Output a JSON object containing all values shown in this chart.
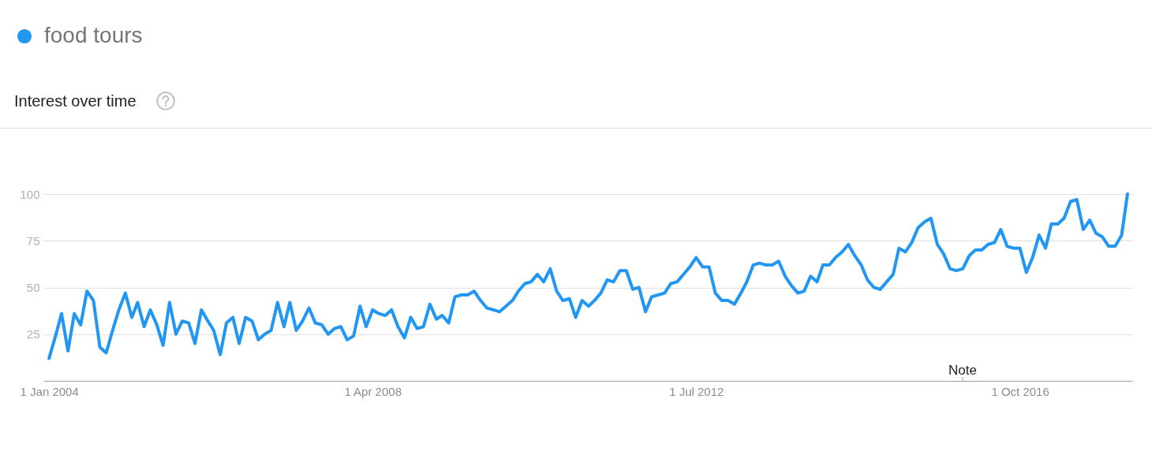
{
  "chart_data": {
    "type": "line",
    "title": "Interest over time",
    "x": [
      "2004-01",
      "2004-02",
      "2004-03",
      "2004-04",
      "2004-05",
      "2004-06",
      "2004-07",
      "2004-08",
      "2004-09",
      "2004-10",
      "2004-11",
      "2004-12",
      "2005-01",
      "2005-02",
      "2005-03",
      "2005-04",
      "2005-05",
      "2005-06",
      "2005-07",
      "2005-08",
      "2005-09",
      "2005-10",
      "2005-11",
      "2005-12",
      "2006-01",
      "2006-02",
      "2006-03",
      "2006-04",
      "2006-05",
      "2006-06",
      "2006-07",
      "2006-08",
      "2006-09",
      "2006-10",
      "2006-11",
      "2006-12",
      "2007-01",
      "2007-02",
      "2007-03",
      "2007-04",
      "2007-05",
      "2007-06",
      "2007-07",
      "2007-08",
      "2007-09",
      "2007-10",
      "2007-11",
      "2007-12",
      "2008-01",
      "2008-02",
      "2008-03",
      "2008-04",
      "2008-05",
      "2008-06",
      "2008-07",
      "2008-08",
      "2008-09",
      "2008-10",
      "2008-11",
      "2008-12",
      "2009-01",
      "2009-02",
      "2009-03",
      "2009-04",
      "2009-05",
      "2009-06",
      "2009-07",
      "2009-08",
      "2009-09",
      "2009-10",
      "2009-11",
      "2009-12",
      "2010-01",
      "2010-02",
      "2010-03",
      "2010-04",
      "2010-05",
      "2010-06",
      "2010-07",
      "2010-08",
      "2010-09",
      "2010-10",
      "2010-11",
      "2010-12",
      "2011-01",
      "2011-02",
      "2011-03",
      "2011-04",
      "2011-05",
      "2011-06",
      "2011-07",
      "2011-08",
      "2011-09",
      "2011-10",
      "2011-11",
      "2011-12",
      "2012-01",
      "2012-02",
      "2012-03",
      "2012-04",
      "2012-05",
      "2012-06",
      "2012-07",
      "2012-08",
      "2012-09",
      "2012-10",
      "2012-11",
      "2012-12",
      "2013-01",
      "2013-02",
      "2013-03",
      "2013-04",
      "2013-05",
      "2013-06",
      "2013-07",
      "2013-08",
      "2013-09",
      "2013-10",
      "2013-11",
      "2013-12",
      "2014-01",
      "2014-02",
      "2014-03",
      "2014-04",
      "2014-05",
      "2014-06",
      "2014-07",
      "2014-08",
      "2014-09",
      "2014-10",
      "2014-11",
      "2014-12",
      "2015-01",
      "2015-02",
      "2015-03",
      "2015-04",
      "2015-05",
      "2015-06",
      "2015-07",
      "2015-08",
      "2015-09",
      "2015-10",
      "2015-11",
      "2015-12",
      "2016-01",
      "2016-02",
      "2016-03",
      "2016-04",
      "2016-05",
      "2016-06",
      "2016-07",
      "2016-08",
      "2016-09",
      "2016-10",
      "2016-11",
      "2016-12",
      "2017-01",
      "2017-02",
      "2017-03",
      "2017-04",
      "2017-05",
      "2017-06",
      "2017-07",
      "2017-08",
      "2017-09",
      "2017-10",
      "2017-11",
      "2017-12",
      "2018-01",
      "2018-02",
      "2018-03"
    ],
    "series": [
      {
        "name": "food tours",
        "color": "#2196f3",
        "values": [
          12,
          24,
          36,
          16,
          36,
          30,
          48,
          43,
          18,
          15,
          27,
          38,
          47,
          34,
          42,
          29,
          38,
          30,
          19,
          42,
          25,
          32,
          31,
          20,
          38,
          32,
          27,
          14,
          31,
          34,
          20,
          34,
          32,
          22,
          25,
          27,
          42,
          29,
          42,
          27,
          32,
          39,
          31,
          30,
          25,
          28,
          29,
          22,
          24,
          40,
          29,
          38,
          36,
          35,
          38,
          29,
          23,
          34,
          28,
          29,
          41,
          33,
          35,
          31,
          45,
          46,
          46,
          48,
          43,
          39,
          38,
          37,
          40,
          43,
          48,
          52,
          53,
          57,
          53,
          60,
          48,
          43,
          44,
          34,
          43,
          40,
          43,
          47,
          54,
          53,
          59,
          59,
          49,
          50,
          37,
          45,
          46,
          47,
          52,
          53,
          57,
          61,
          66,
          61,
          61,
          47,
          43,
          43,
          41,
          47,
          53,
          62,
          63,
          62,
          62,
          64,
          56,
          51,
          47,
          48,
          56,
          53,
          62,
          62,
          66,
          69,
          73,
          67,
          62,
          54,
          50,
          49,
          53,
          57,
          71,
          69,
          74,
          82,
          85,
          87,
          73,
          68,
          60,
          59,
          60,
          67,
          70,
          70,
          73,
          74,
          81,
          72,
          71,
          71,
          58,
          66,
          78,
          71,
          84,
          84,
          87,
          96,
          97,
          81,
          86,
          79,
          77,
          72,
          72,
          78,
          100
        ]
      }
    ],
    "xlim": [
      "2003-12-05",
      "2018-03-24"
    ],
    "xticks": [
      {
        "value": "2004-01-01",
        "label": "1 Jan 2004"
      },
      {
        "value": "2008-04-01",
        "label": "1 Apr 2008"
      },
      {
        "value": "2012-07-01",
        "label": "1 Jul 2012"
      },
      {
        "value": "2016-10-01",
        "label": "1 Oct 2016"
      }
    ],
    "ylim": [
      0,
      100
    ],
    "yticks": [
      25,
      50,
      75,
      100
    ],
    "grid": "y",
    "legend": "top left",
    "annotations": [
      "Note"
    ]
  }
}
